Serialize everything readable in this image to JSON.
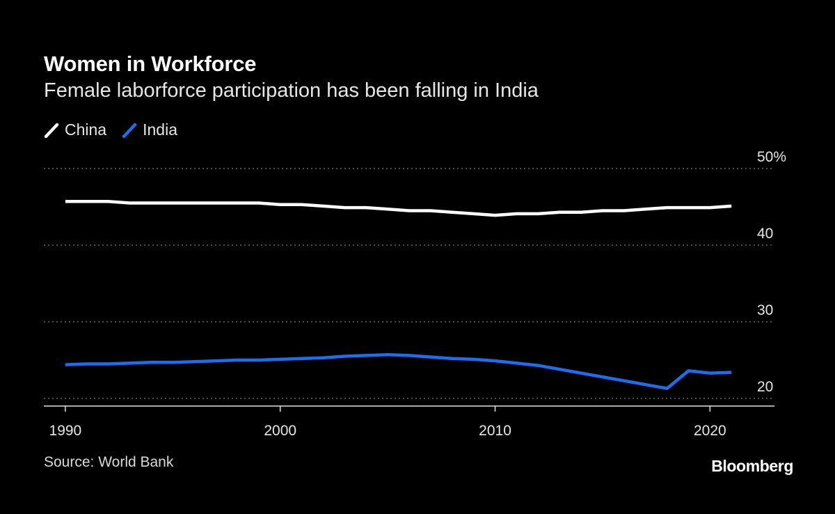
{
  "colors": {
    "background": "#000000",
    "china": "#ffffff",
    "india": "#1a6ff0",
    "grid": "#777777"
  },
  "header": {
    "title": "Women in Workforce",
    "subtitle": "Female laborforce participation has been falling in India"
  },
  "footer": {
    "source": "Source: World Bank",
    "brand": "Bloomberg"
  },
  "chart_data": {
    "type": "line",
    "title": "Women in Workforce",
    "subtitle": "Female laborforce participation has been falling in India",
    "xlabel": "",
    "ylabel": "",
    "x": [
      1990,
      1991,
      1992,
      1993,
      1994,
      1995,
      1996,
      1997,
      1998,
      1999,
      2000,
      2001,
      2002,
      2003,
      2004,
      2005,
      2006,
      2007,
      2008,
      2009,
      2010,
      2011,
      2012,
      2013,
      2014,
      2015,
      2016,
      2017,
      2018,
      2019,
      2020,
      2021
    ],
    "xlim": [
      1989,
      2023
    ],
    "ylim": [
      19,
      50
    ],
    "x_ticks": [
      1990,
      2000,
      2010,
      2020
    ],
    "x_tick_labels": [
      "1990",
      "2000",
      "2010",
      "2020"
    ],
    "y_ticks": [
      20,
      30,
      40,
      50
    ],
    "y_tick_labels": [
      "20",
      "30",
      "40",
      "50%"
    ],
    "grid": true,
    "legend": "top-left",
    "series": [
      {
        "name": "China",
        "color": "#ffffff",
        "values": [
          45.7,
          45.7,
          45.7,
          45.5,
          45.5,
          45.5,
          45.5,
          45.5,
          45.5,
          45.5,
          45.3,
          45.3,
          45.1,
          44.9,
          44.9,
          44.7,
          44.5,
          44.5,
          44.3,
          44.1,
          43.9,
          44.1,
          44.1,
          44.3,
          44.3,
          44.5,
          44.5,
          44.7,
          44.9,
          44.9,
          44.9,
          45.1
        ]
      },
      {
        "name": "India",
        "color": "#1a6ff0",
        "values": [
          24.4,
          24.5,
          24.5,
          24.6,
          24.7,
          24.7,
          24.8,
          24.9,
          25.0,
          25.0,
          25.1,
          25.2,
          25.3,
          25.5,
          25.6,
          25.7,
          25.6,
          25.4,
          25.2,
          25.1,
          24.9,
          24.6,
          24.3,
          23.8,
          23.3,
          22.8,
          22.3,
          21.8,
          21.3,
          23.6,
          23.3,
          23.4
        ]
      }
    ]
  }
}
